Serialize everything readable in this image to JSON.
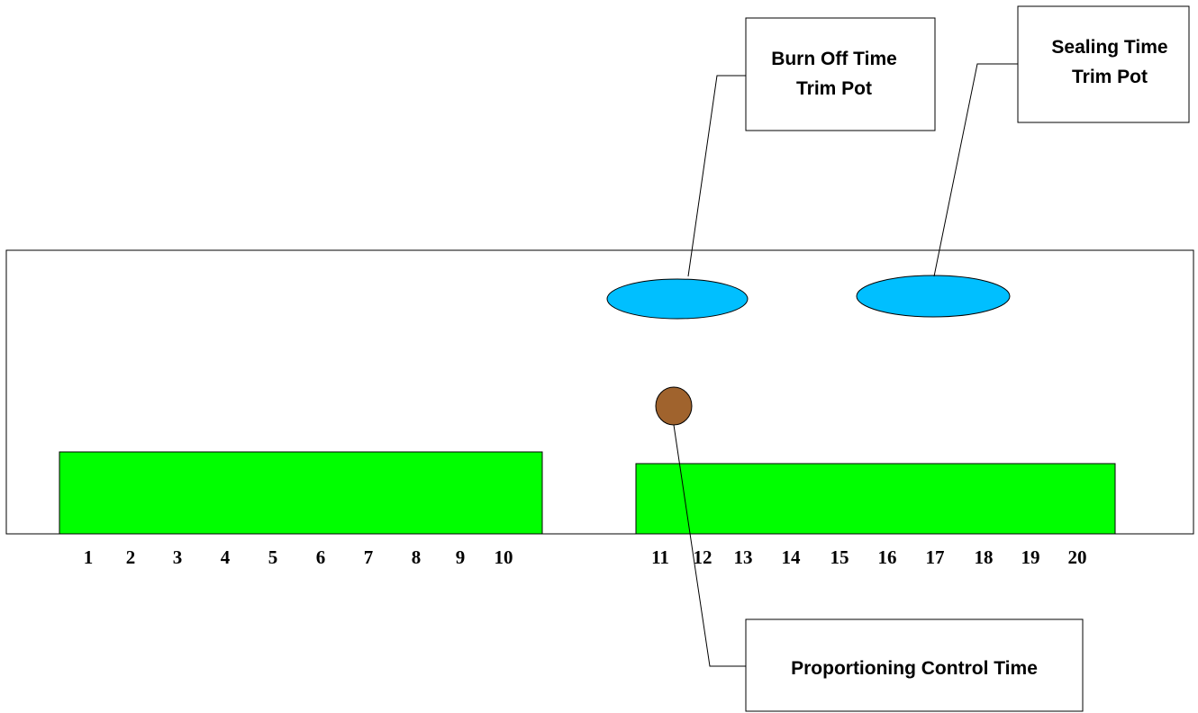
{
  "callouts": {
    "burn_off": {
      "line1": "Burn Off Time",
      "line2": "Trim Pot"
    },
    "sealing": {
      "line1": "Sealing Time",
      "line2": "Trim Pot"
    },
    "proportioning": {
      "label": "Proportioning Control Time"
    }
  },
  "terminals": {
    "left": [
      "1",
      "2",
      "3",
      "4",
      "5",
      "6",
      "7",
      "8",
      "9",
      "10"
    ],
    "right": [
      "11",
      "12",
      "13",
      "14",
      "15",
      "16",
      "17",
      "18",
      "19",
      "20"
    ]
  },
  "colors": {
    "terminal_block": "#00ff00",
    "trim_pot": "#00bfff",
    "proportioning_pot": "#a0632d",
    "outline": "#000000"
  },
  "icons": {
    "trim_pot": "trim-pot-icon",
    "proportioning_pot": "proportioning-pot-icon"
  }
}
